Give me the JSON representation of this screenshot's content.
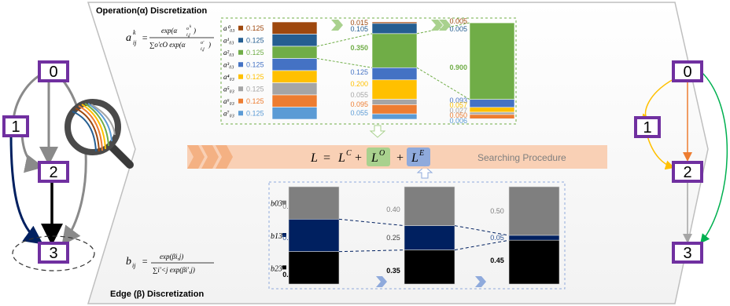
{
  "titles": {
    "operation": "Operation(α) Discretization",
    "edge": "Edge (β) Discretization"
  },
  "formulas": {
    "alpha_lhs": "a",
    "alpha_num": "exp(α",
    "alpha_den": "∑o′ϵO exp(α",
    "beta_lhs": "b",
    "beta_num": "exp(βi,j)",
    "beta_den": "∑i′<j exp(βi′,j)"
  },
  "loss": {
    "L": "L",
    "eq": "=",
    "LC": "L",
    "LC_sup": "C",
    "plus1": "+",
    "LO": "L",
    "LO_sup": "O",
    "plus2": "+",
    "LE": "L",
    "LE_sup": "E",
    "label": "Searching   Procedure"
  },
  "left_graph": {
    "nodes": [
      "0",
      "1",
      "2",
      "3"
    ]
  },
  "right_graph": {
    "nodes": [
      "0",
      "1",
      "2",
      "3"
    ]
  },
  "alpha_legend": {
    "labels": [
      "a⁰₀₃",
      "a¹₀₃",
      "a²₀₃",
      "a³₀₃",
      "a⁴₀₃",
      "a⁵₀₃",
      "a⁶₀₃",
      "a⁷₀₃"
    ],
    "values": [
      "0.125",
      "0.125",
      "0.125",
      "0.125",
      "0.125",
      "0.125",
      "0.125",
      "0.125"
    ]
  },
  "alpha_bar2": {
    "values": [
      "0.015",
      "0.105",
      "0.350",
      "0.125",
      "0.200",
      "0.055",
      "0.095",
      "0.055"
    ]
  },
  "alpha_bar3": {
    "values": [
      "0.005",
      "0.005",
      "0.900",
      "0.093",
      "0.057",
      "0.027",
      "0.050",
      "0.006"
    ]
  },
  "alpha_colors": [
    "#9e480e",
    "#255e91",
    "#70ad47",
    "#4472c4",
    "#ffc000",
    "#a5a5a5",
    "#ed7d31",
    "#5b9bd5"
  ],
  "beta_legend": {
    "labels": [
      "b03",
      "b13",
      "b23"
    ],
    "colors": [
      "#7f7f7f",
      "#002060",
      "#000000"
    ]
  },
  "beta_bar1": {
    "values": [
      "0.33",
      "0.33",
      "0.33"
    ]
  },
  "beta_bar2": {
    "values": [
      "0.40",
      "0.25",
      "0.35"
    ]
  },
  "beta_bar3": {
    "values": [
      "0.50",
      "0.05",
      "0.45"
    ]
  }
}
